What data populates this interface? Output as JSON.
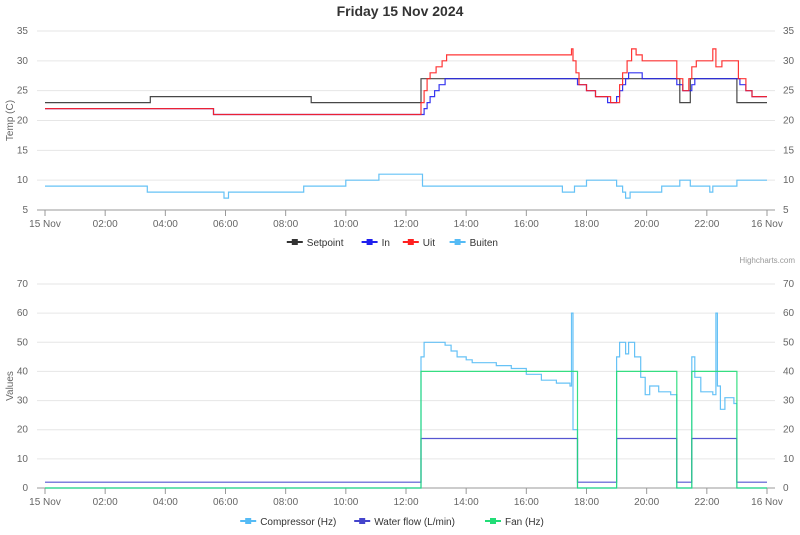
{
  "title": "Friday 15 Nov 2024",
  "credits": "Highcharts.com",
  "chart_data": [
    {
      "type": "line",
      "title": "Friday 15 Nov 2024",
      "ylabel": "Temp (C)",
      "xlabel": "",
      "ylim": [
        5,
        35
      ],
      "yticks": [
        "5",
        "10",
        "15",
        "20",
        "25",
        "30",
        "35"
      ],
      "xticks": [
        "15 Nov",
        "02:00",
        "04:00",
        "06:00",
        "08:00",
        "10:00",
        "12:00",
        "14:00",
        "16:00",
        "18:00",
        "20:00",
        "22:00",
        "16 Nov"
      ],
      "x_unit": "hours since 15 Nov 00:00",
      "grid": true,
      "legend": "bottom-center",
      "series": [
        {
          "name": "Setpoint",
          "color": "#333333",
          "step": [
            [
              0,
              23
            ],
            [
              3.5,
              24
            ],
            [
              8.85,
              23
            ],
            [
              12.5,
              27
            ],
            [
              21.1,
              23
            ],
            [
              21.45,
              27
            ],
            [
              23,
              23
            ],
            [
              24,
              23
            ]
          ]
        },
        {
          "name": "In",
          "color": "#2020ee",
          "step": [
            [
              0,
              22
            ],
            [
              5.6,
              21
            ],
            [
              12.6,
              22
            ],
            [
              12.7,
              23
            ],
            [
              12.8,
              24
            ],
            [
              12.95,
              25
            ],
            [
              13.1,
              26
            ],
            [
              13.3,
              27
            ],
            [
              17.7,
              26
            ],
            [
              18,
              25
            ],
            [
              18.3,
              24
            ],
            [
              18.7,
              23
            ],
            [
              19,
              24
            ],
            [
              19.1,
              25
            ],
            [
              19.2,
              26
            ],
            [
              19.3,
              27
            ],
            [
              19.4,
              28
            ],
            [
              19.85,
              27
            ],
            [
              21,
              26
            ],
            [
              21.2,
              25
            ],
            [
              21.5,
              26
            ],
            [
              21.6,
              27
            ],
            [
              23.1,
              26
            ],
            [
              23.3,
              25
            ],
            [
              23.5,
              24
            ],
            [
              24,
              24
            ]
          ]
        },
        {
          "name": "Uit",
          "color": "#ff2020",
          "step": [
            [
              0,
              22
            ],
            [
              5.6,
              21
            ],
            [
              12.5,
              23
            ],
            [
              12.6,
              25
            ],
            [
              12.7,
              27
            ],
            [
              12.8,
              28
            ],
            [
              13,
              29
            ],
            [
              13.2,
              30
            ],
            [
              13.35,
              31
            ],
            [
              17.5,
              32
            ],
            [
              17.55,
              30
            ],
            [
              17.65,
              28
            ],
            [
              17.75,
              26
            ],
            [
              18,
              25
            ],
            [
              18.3,
              24
            ],
            [
              18.8,
              23
            ],
            [
              19.1,
              26
            ],
            [
              19.2,
              28
            ],
            [
              19.35,
              30
            ],
            [
              19.5,
              32
            ],
            [
              19.65,
              31
            ],
            [
              19.85,
              30
            ],
            [
              21,
              27
            ],
            [
              21.2,
              25
            ],
            [
              21.4,
              27
            ],
            [
              21.5,
              29
            ],
            [
              21.65,
              30
            ],
            [
              22.2,
              32
            ],
            [
              22.3,
              29
            ],
            [
              22.5,
              30
            ],
            [
              23.05,
              27
            ],
            [
              23.3,
              25
            ],
            [
              23.5,
              24
            ],
            [
              24,
              24
            ]
          ]
        },
        {
          "name": "Buiten",
          "color": "#55bbf5",
          "step": [
            [
              0,
              9
            ],
            [
              3.4,
              8
            ],
            [
              5.95,
              7
            ],
            [
              6.1,
              8
            ],
            [
              8.6,
              9
            ],
            [
              10,
              10
            ],
            [
              11.1,
              11
            ],
            [
              12.55,
              9
            ],
            [
              17.2,
              8
            ],
            [
              17.6,
              9
            ],
            [
              18,
              10
            ],
            [
              19,
              9
            ],
            [
              19.2,
              8
            ],
            [
              19.3,
              7
            ],
            [
              19.45,
              8
            ],
            [
              20.5,
              9
            ],
            [
              21.1,
              10
            ],
            [
              21.45,
              9
            ],
            [
              22.1,
              8
            ],
            [
              22.2,
              9
            ],
            [
              23,
              10
            ],
            [
              24,
              10
            ]
          ]
        }
      ]
    },
    {
      "type": "line",
      "title": "",
      "ylabel": "Values",
      "xlabel": "",
      "ylim": [
        0,
        70
      ],
      "yticks": [
        "0",
        "10",
        "20",
        "30",
        "40",
        "50",
        "60",
        "70"
      ],
      "xticks": [
        "15 Nov",
        "02:00",
        "04:00",
        "06:00",
        "08:00",
        "10:00",
        "12:00",
        "14:00",
        "16:00",
        "18:00",
        "20:00",
        "22:00",
        "16 Nov"
      ],
      "x_unit": "hours since 15 Nov 00:00",
      "grid": true,
      "legend": "bottom-center",
      "series": [
        {
          "name": "Compressor (Hz)",
          "color": "#55bbf5",
          "step": [
            [
              0,
              0
            ],
            [
              12.5,
              45
            ],
            [
              12.6,
              50
            ],
            [
              13.3,
              49
            ],
            [
              13.5,
              47
            ],
            [
              13.7,
              45
            ],
            [
              14,
              44
            ],
            [
              14.2,
              43
            ],
            [
              15,
              42
            ],
            [
              15.5,
              41
            ],
            [
              16,
              39
            ],
            [
              16.5,
              37
            ],
            [
              17,
              36
            ],
            [
              17.45,
              35
            ],
            [
              17.5,
              60
            ],
            [
              17.55,
              20
            ],
            [
              17.7,
              0
            ],
            [
              19,
              45
            ],
            [
              19.1,
              50
            ],
            [
              19.3,
              46
            ],
            [
              19.4,
              50
            ],
            [
              19.6,
              45
            ],
            [
              19.8,
              38
            ],
            [
              19.95,
              32
            ],
            [
              20.1,
              35
            ],
            [
              20.4,
              33
            ],
            [
              20.8,
              32
            ],
            [
              21,
              0
            ],
            [
              21.5,
              45
            ],
            [
              21.6,
              38
            ],
            [
              21.8,
              33
            ],
            [
              22.2,
              32
            ],
            [
              22.3,
              60
            ],
            [
              22.35,
              35
            ],
            [
              22.45,
              27
            ],
            [
              22.6,
              31
            ],
            [
              22.9,
              29
            ],
            [
              23,
              0
            ],
            [
              24,
              0
            ]
          ]
        },
        {
          "name": "Water flow (L/min)",
          "color": "#4444cc",
          "step": [
            [
              0,
              2
            ],
            [
              12.5,
              17
            ],
            [
              17.7,
              2
            ],
            [
              19,
              17
            ],
            [
              21,
              2
            ],
            [
              21.5,
              17
            ],
            [
              23,
              2
            ],
            [
              24,
              2
            ]
          ]
        },
        {
          "name": "Fan (Hz)",
          "color": "#22dd77",
          "step": [
            [
              0,
              0
            ],
            [
              12.5,
              40
            ],
            [
              17.7,
              0
            ],
            [
              19,
              40
            ],
            [
              21,
              0
            ],
            [
              21.5,
              40
            ],
            [
              23,
              0
            ],
            [
              24,
              0
            ]
          ]
        }
      ]
    }
  ]
}
